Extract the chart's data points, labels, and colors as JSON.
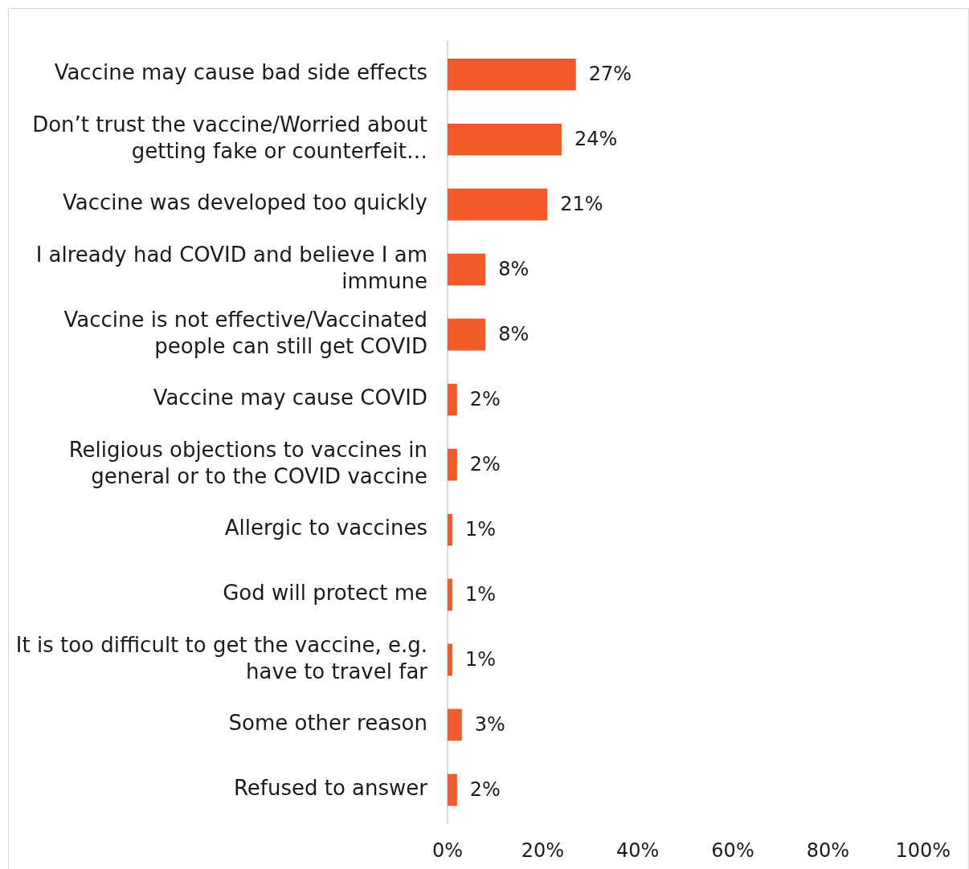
{
  "chart_data": {
    "type": "bar",
    "orientation": "horizontal",
    "categories": [
      "Vaccine may cause bad side effects",
      "Don’t trust the vaccine/Worried about getting fake or counterfeit…",
      "Vaccine was developed too quickly",
      "I already had COVID and believe I am immune",
      "Vaccine is not effective/Vaccinated people can still get COVID",
      "Vaccine may cause COVID",
      "Religious objections to vaccines in general or to the COVID vaccine",
      "Allergic to vaccines",
      "God will protect me",
      "It is too difficult to get the vaccine, e.g. have to travel far",
      "Some other reason",
      "Refused to answer"
    ],
    "values": [
      27,
      24,
      21,
      8,
      8,
      2,
      2,
      1,
      1,
      1,
      3,
      2
    ],
    "color": "#f15a2b",
    "value_labels": [
      "27%",
      "24%",
      "21%",
      "8%",
      "8%",
      "2%",
      "2%",
      "1%",
      "1%",
      "1%",
      "3%",
      "2%"
    ],
    "xlim": [
      0,
      100
    ],
    "xticks": [
      {
        "value": 0,
        "label": "0%"
      },
      {
        "value": 20,
        "label": "20%"
      },
      {
        "value": 40,
        "label": "40%"
      },
      {
        "value": 60,
        "label": "60%"
      },
      {
        "value": 80,
        "label": "80%"
      },
      {
        "value": 100,
        "label": "100%"
      }
    ],
    "grid": false,
    "legend": false
  }
}
